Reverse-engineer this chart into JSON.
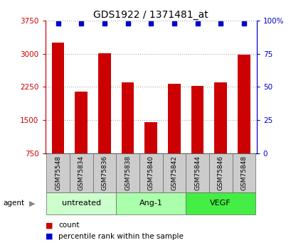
{
  "title": "GDS1922 / 1371481_at",
  "samples": [
    "GSM75548",
    "GSM75834",
    "GSM75836",
    "GSM75838",
    "GSM75840",
    "GSM75842",
    "GSM75844",
    "GSM75846",
    "GSM75848"
  ],
  "counts": [
    3250,
    2150,
    3020,
    2350,
    1460,
    2320,
    2280,
    2350,
    2980
  ],
  "percentile_ranks": [
    98,
    98,
    98,
    98,
    98,
    98,
    98,
    98,
    98
  ],
  "ylim_left": [
    750,
    3750
  ],
  "yticks_left": [
    750,
    1500,
    2250,
    3000,
    3750
  ],
  "ylim_right": [
    0,
    100
  ],
  "yticks_right": [
    0,
    25,
    50,
    75,
    100
  ],
  "yticklabels_right": [
    "0",
    "25",
    "50",
    "75",
    "100%"
  ],
  "bar_color": "#cc0000",
  "percentile_color": "#0000cc",
  "left_axis_color": "#cc0000",
  "right_axis_color": "#0000cc",
  "groups": [
    {
      "label": "untreated",
      "indices": [
        0,
        1,
        2
      ],
      "color": "#ccffcc"
    },
    {
      "label": "Ang-1",
      "indices": [
        3,
        4,
        5
      ],
      "color": "#aaffaa"
    },
    {
      "label": "VEGF",
      "indices": [
        6,
        7,
        8
      ],
      "color": "#44ee44"
    }
  ],
  "agent_label": "agent",
  "legend_count_label": "count",
  "legend_percentile_label": "percentile rank within the sample",
  "grid_color": "#aaaaaa",
  "background_color": "#ffffff",
  "tick_area_color": "#cccccc"
}
